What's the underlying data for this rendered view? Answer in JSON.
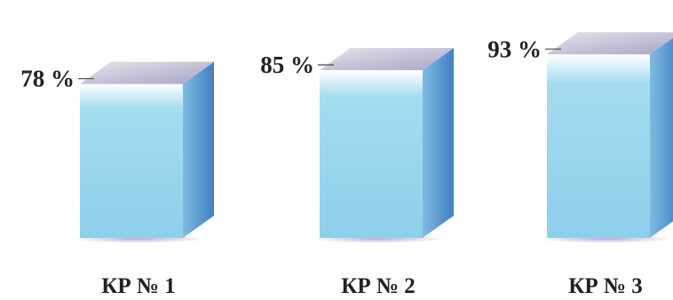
{
  "chart_data": {
    "type": "bar",
    "style": "3d",
    "categories": [
      "КР № 1",
      "КР № 2",
      "КР № 3"
    ],
    "values": [
      78,
      85,
      93
    ],
    "data_labels": [
      "78 %",
      "85 %",
      "93 %"
    ],
    "ylim": [
      0,
      100
    ],
    "grid": false,
    "legend": "none",
    "colors": {
      "front_top": "#ffffff",
      "front_main": "#a4dcf0",
      "front_bottom": "#8fcfea",
      "side_light": "#7fbbe0",
      "side_dark": "#3f7fc4",
      "top_light": "#e4e4ec",
      "top_dark": "#a8a4c4",
      "floor_shadow": "#b39ac9"
    }
  }
}
